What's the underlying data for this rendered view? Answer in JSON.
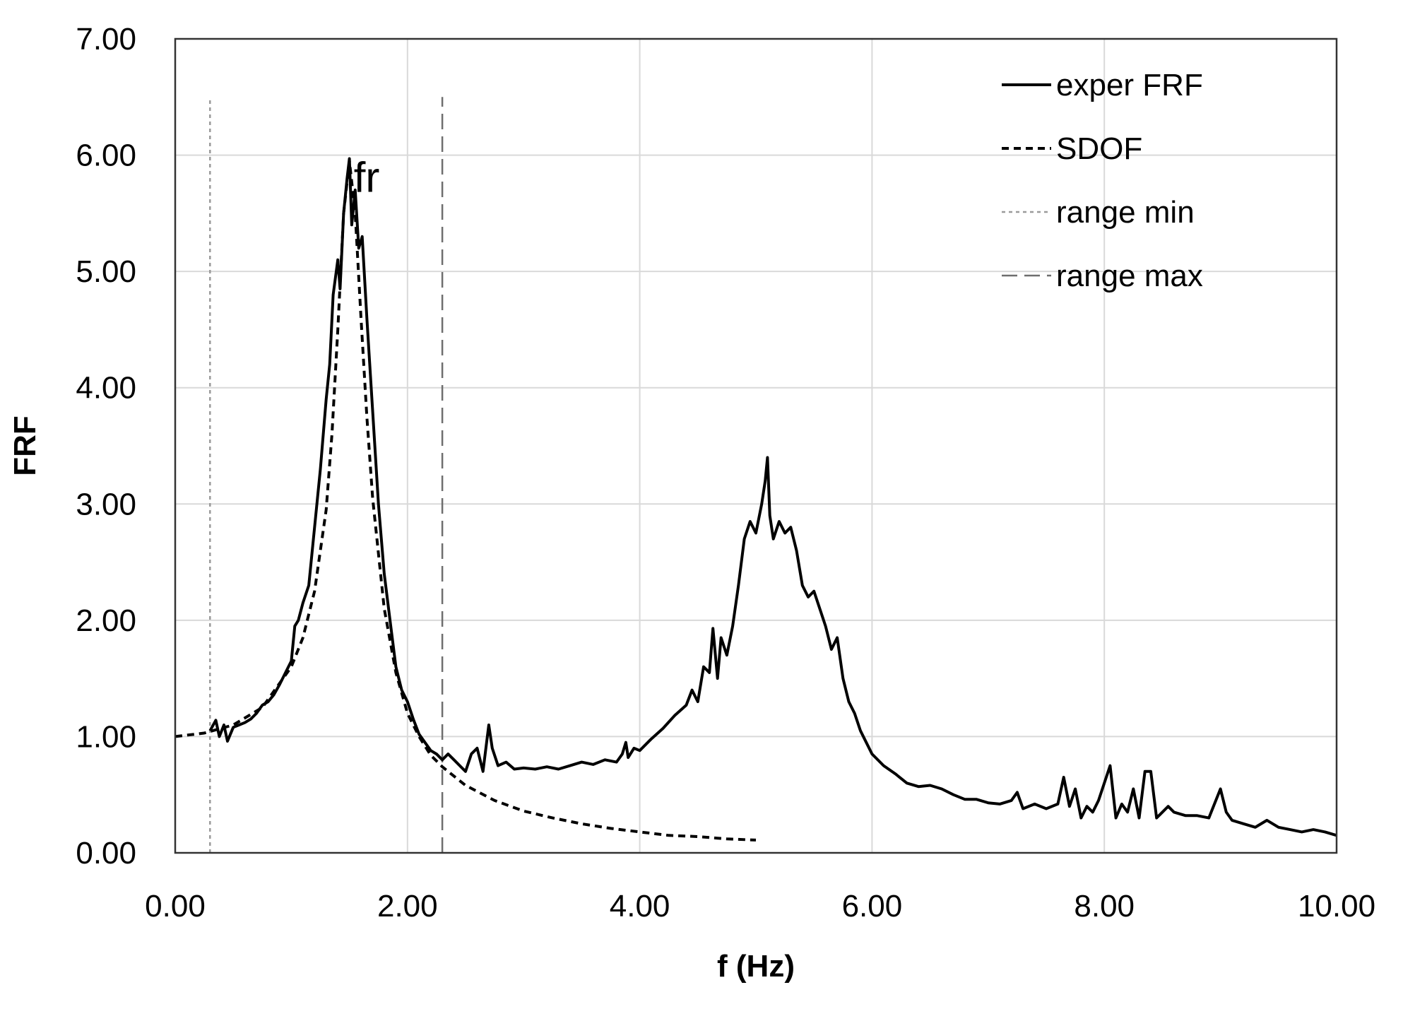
{
  "chart_data": {
    "type": "line",
    "xlabel": "f (Hz)",
    "ylabel": "FRF",
    "xlim": [
      0,
      10
    ],
    "ylim": [
      0,
      7
    ],
    "x_ticks": [
      "0.00",
      "2.00",
      "4.00",
      "6.00",
      "8.00",
      "10.00"
    ],
    "y_ticks": [
      "0.00",
      "1.00",
      "2.00",
      "3.00",
      "4.00",
      "5.00",
      "6.00",
      "7.00"
    ],
    "grid": true,
    "legend_position": "top-right",
    "annotation": {
      "text": "fr",
      "x": 1.75,
      "y": 6.05
    },
    "series": [
      {
        "name": "exper FRF",
        "style": "solid",
        "color": "#000000",
        "points": [
          [
            0.3,
            1.05
          ],
          [
            0.35,
            1.14
          ],
          [
            0.38,
            1.0
          ],
          [
            0.42,
            1.1
          ],
          [
            0.45,
            0.96
          ],
          [
            0.5,
            1.08
          ],
          [
            0.55,
            1.1
          ],
          [
            0.6,
            1.12
          ],
          [
            0.65,
            1.15
          ],
          [
            0.7,
            1.2
          ],
          [
            0.75,
            1.27
          ],
          [
            0.8,
            1.3
          ],
          [
            0.85,
            1.36
          ],
          [
            0.9,
            1.45
          ],
          [
            0.95,
            1.55
          ],
          [
            1.0,
            1.65
          ],
          [
            1.03,
            1.95
          ],
          [
            1.06,
            2.0
          ],
          [
            1.1,
            2.15
          ],
          [
            1.15,
            2.3
          ],
          [
            1.2,
            2.8
          ],
          [
            1.25,
            3.3
          ],
          [
            1.3,
            3.9
          ],
          [
            1.33,
            4.2
          ],
          [
            1.36,
            4.8
          ],
          [
            1.4,
            5.1
          ],
          [
            1.42,
            4.85
          ],
          [
            1.45,
            5.5
          ],
          [
            1.48,
            5.8
          ],
          [
            1.5,
            5.97
          ],
          [
            1.52,
            5.4
          ],
          [
            1.55,
            5.7
          ],
          [
            1.58,
            5.2
          ],
          [
            1.61,
            5.3
          ],
          [
            1.65,
            4.6
          ],
          [
            1.7,
            3.8
          ],
          [
            1.75,
            3.0
          ],
          [
            1.8,
            2.4
          ],
          [
            1.85,
            2.0
          ],
          [
            1.9,
            1.6
          ],
          [
            1.95,
            1.4
          ],
          [
            2.0,
            1.3
          ],
          [
            2.05,
            1.15
          ],
          [
            2.1,
            1.02
          ],
          [
            2.15,
            0.95
          ],
          [
            2.2,
            0.88
          ],
          [
            2.25,
            0.85
          ],
          [
            2.3,
            0.8
          ],
          [
            2.35,
            0.85
          ],
          [
            2.4,
            0.8
          ],
          [
            2.45,
            0.75
          ],
          [
            2.5,
            0.7
          ],
          [
            2.55,
            0.85
          ],
          [
            2.6,
            0.9
          ],
          [
            2.65,
            0.7
          ],
          [
            2.7,
            1.1
          ],
          [
            2.73,
            0.9
          ],
          [
            2.78,
            0.75
          ],
          [
            2.85,
            0.78
          ],
          [
            2.92,
            0.72
          ],
          [
            3.0,
            0.73
          ],
          [
            3.1,
            0.72
          ],
          [
            3.2,
            0.74
          ],
          [
            3.3,
            0.72
          ],
          [
            3.4,
            0.75
          ],
          [
            3.5,
            0.78
          ],
          [
            3.6,
            0.76
          ],
          [
            3.7,
            0.8
          ],
          [
            3.8,
            0.78
          ],
          [
            3.85,
            0.85
          ],
          [
            3.88,
            0.95
          ],
          [
            3.9,
            0.82
          ],
          [
            3.95,
            0.9
          ],
          [
            4.0,
            0.88
          ],
          [
            4.1,
            0.98
          ],
          [
            4.2,
            1.07
          ],
          [
            4.3,
            1.18
          ],
          [
            4.4,
            1.27
          ],
          [
            4.45,
            1.4
          ],
          [
            4.5,
            1.3
          ],
          [
            4.55,
            1.6
          ],
          [
            4.6,
            1.55
          ],
          [
            4.63,
            1.93
          ],
          [
            4.67,
            1.5
          ],
          [
            4.7,
            1.85
          ],
          [
            4.75,
            1.7
          ],
          [
            4.8,
            1.95
          ],
          [
            4.85,
            2.3
          ],
          [
            4.9,
            2.7
          ],
          [
            4.95,
            2.85
          ],
          [
            5.0,
            2.75
          ],
          [
            5.05,
            3.0
          ],
          [
            5.08,
            3.2
          ],
          [
            5.1,
            3.4
          ],
          [
            5.12,
            2.9
          ],
          [
            5.15,
            2.7
          ],
          [
            5.2,
            2.85
          ],
          [
            5.25,
            2.75
          ],
          [
            5.3,
            2.8
          ],
          [
            5.35,
            2.6
          ],
          [
            5.4,
            2.3
          ],
          [
            5.45,
            2.2
          ],
          [
            5.5,
            2.25
          ],
          [
            5.55,
            2.1
          ],
          [
            5.6,
            1.95
          ],
          [
            5.65,
            1.75
          ],
          [
            5.7,
            1.85
          ],
          [
            5.75,
            1.5
          ],
          [
            5.8,
            1.3
          ],
          [
            5.85,
            1.2
          ],
          [
            5.9,
            1.05
          ],
          [
            5.95,
            0.95
          ],
          [
            6.0,
            0.85
          ],
          [
            6.1,
            0.75
          ],
          [
            6.2,
            0.68
          ],
          [
            6.3,
            0.6
          ],
          [
            6.4,
            0.57
          ],
          [
            6.5,
            0.58
          ],
          [
            6.6,
            0.55
          ],
          [
            6.7,
            0.5
          ],
          [
            6.8,
            0.46
          ],
          [
            6.9,
            0.46
          ],
          [
            7.0,
            0.43
          ],
          [
            7.1,
            0.42
          ],
          [
            7.2,
            0.45
          ],
          [
            7.25,
            0.52
          ],
          [
            7.3,
            0.38
          ],
          [
            7.4,
            0.42
          ],
          [
            7.5,
            0.38
          ],
          [
            7.6,
            0.42
          ],
          [
            7.65,
            0.65
          ],
          [
            7.7,
            0.4
          ],
          [
            7.75,
            0.55
          ],
          [
            7.8,
            0.3
          ],
          [
            7.85,
            0.4
          ],
          [
            7.9,
            0.35
          ],
          [
            7.95,
            0.45
          ],
          [
            8.0,
            0.6
          ],
          [
            8.05,
            0.75
          ],
          [
            8.1,
            0.3
          ],
          [
            8.15,
            0.42
          ],
          [
            8.2,
            0.35
          ],
          [
            8.25,
            0.55
          ],
          [
            8.3,
            0.3
          ],
          [
            8.35,
            0.7
          ],
          [
            8.4,
            0.7
          ],
          [
            8.45,
            0.3
          ],
          [
            8.5,
            0.35
          ],
          [
            8.55,
            0.4
          ],
          [
            8.6,
            0.35
          ],
          [
            8.7,
            0.32
          ],
          [
            8.8,
            0.32
          ],
          [
            8.9,
            0.3
          ],
          [
            9.0,
            0.55
          ],
          [
            9.05,
            0.35
          ],
          [
            9.1,
            0.28
          ],
          [
            9.2,
            0.25
          ],
          [
            9.3,
            0.22
          ],
          [
            9.4,
            0.28
          ],
          [
            9.5,
            0.22
          ],
          [
            9.6,
            0.2
          ],
          [
            9.7,
            0.18
          ],
          [
            9.8,
            0.2
          ],
          [
            9.9,
            0.18
          ],
          [
            10.0,
            0.15
          ]
        ]
      },
      {
        "name": "SDOF",
        "style": "dashed",
        "color": "#000000",
        "points": [
          [
            0.0,
            1.0
          ],
          [
            0.25,
            1.03
          ],
          [
            0.5,
            1.1
          ],
          [
            0.75,
            1.25
          ],
          [
            1.0,
            1.6
          ],
          [
            1.1,
            1.85
          ],
          [
            1.2,
            2.25
          ],
          [
            1.3,
            2.95
          ],
          [
            1.35,
            3.6
          ],
          [
            1.4,
            4.5
          ],
          [
            1.45,
            5.5
          ],
          [
            1.5,
            5.95
          ],
          [
            1.55,
            5.5
          ],
          [
            1.6,
            4.6
          ],
          [
            1.65,
            3.75
          ],
          [
            1.7,
            3.05
          ],
          [
            1.8,
            2.1
          ],
          [
            1.9,
            1.55
          ],
          [
            2.0,
            1.2
          ],
          [
            2.1,
            1.0
          ],
          [
            2.2,
            0.84
          ],
          [
            2.3,
            0.74
          ],
          [
            2.5,
            0.58
          ],
          [
            2.75,
            0.45
          ],
          [
            3.0,
            0.36
          ],
          [
            3.25,
            0.3
          ],
          [
            3.5,
            0.25
          ],
          [
            3.75,
            0.21
          ],
          [
            4.0,
            0.18
          ],
          [
            4.25,
            0.15
          ],
          [
            4.5,
            0.14
          ],
          [
            4.75,
            0.12
          ],
          [
            5.0,
            0.11
          ]
        ]
      },
      {
        "name": "range min",
        "style": "dotted",
        "color": "#9a9a9a",
        "points": [
          [
            0.3,
            0.0
          ],
          [
            0.3,
            6.5
          ]
        ]
      },
      {
        "name": "range max",
        "style": "long-dash",
        "color": "#6e6e6e",
        "points": [
          [
            2.3,
            0.0
          ],
          [
            2.3,
            6.5
          ]
        ]
      }
    ]
  }
}
